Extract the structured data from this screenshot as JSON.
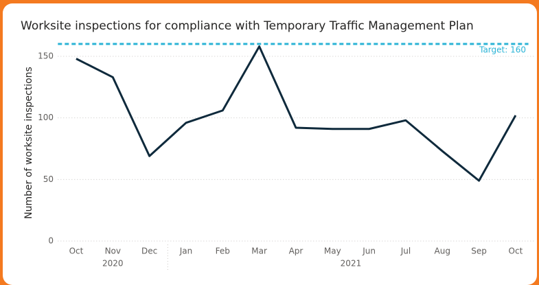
{
  "chart_data": {
    "type": "line",
    "title": "Worksite inspections for compliance with Temporary Traffic Management Plan",
    "y_label": "Number of worksite inspections",
    "categories": [
      "Oct",
      "Nov",
      "Dec",
      "Jan",
      "Feb",
      "Mar",
      "Apr",
      "May",
      "Jun",
      "Jul",
      "Aug",
      "Sep",
      "Oct"
    ],
    "category_groups": [
      {
        "label": "2020",
        "start": 0,
        "end": 2
      },
      {
        "label": "2021",
        "start": 3,
        "end": 12
      }
    ],
    "series": [
      {
        "name": "Worksite inspections",
        "color": "#0f2a3c",
        "values": [
          148,
          133,
          69,
          96,
          106,
          158,
          92,
          91,
          91,
          98,
          73,
          49,
          102
        ]
      }
    ],
    "reference_line": {
      "value": 160,
      "label": "Target: 160",
      "color": "#2bb3d6"
    },
    "ylim": [
      0,
      162
    ],
    "yticks": [
      0,
      50,
      100,
      150
    ],
    "grid": true
  }
}
